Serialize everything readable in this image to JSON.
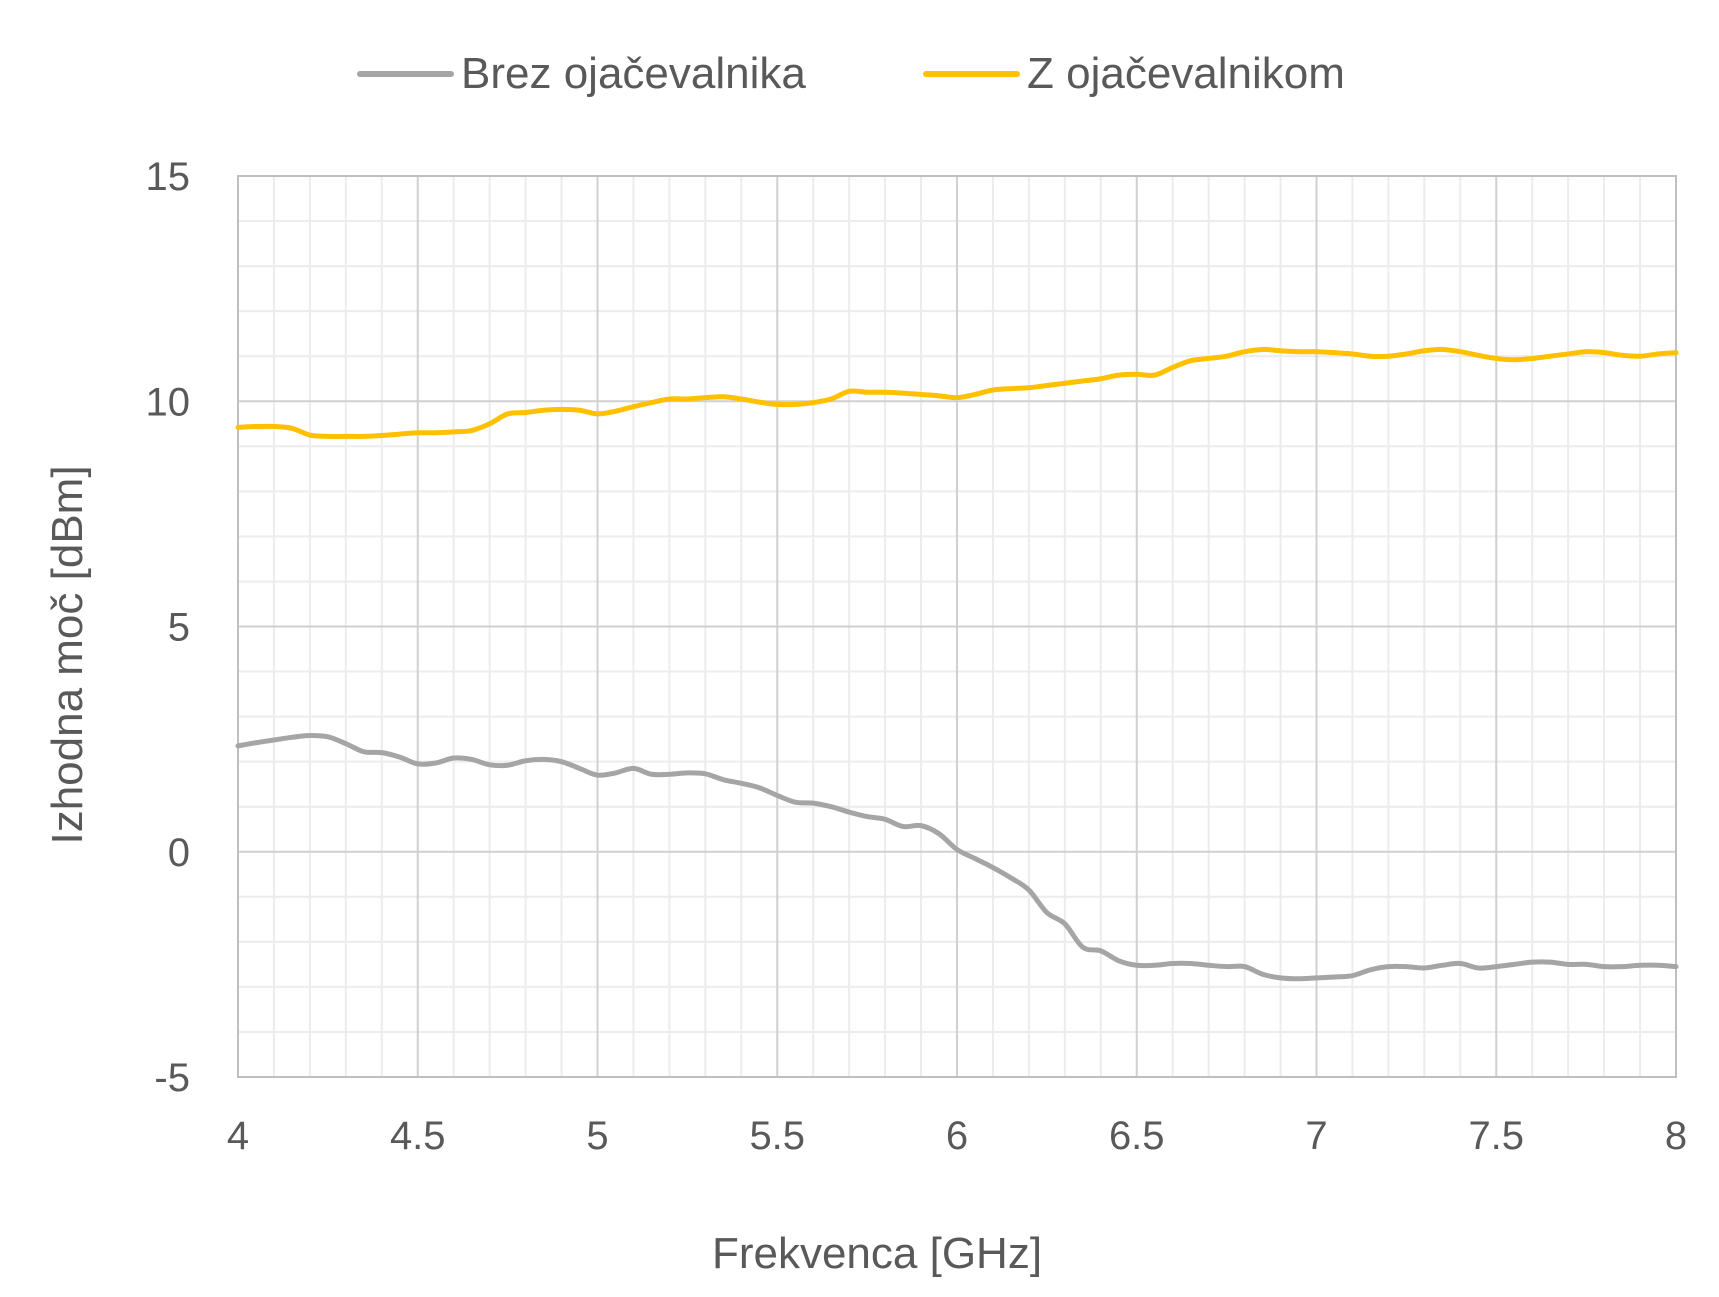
{
  "chart_data": {
    "type": "line",
    "title": "",
    "xlabel": "Frekvenca [GHz]",
    "ylabel": "Izhodna moč [dBm]",
    "xlim": [
      4,
      8
    ],
    "ylim": [
      -5,
      15
    ],
    "x_major_step": 0.5,
    "x_minor_step": 0.1,
    "y_major_step": 5,
    "y_minor_step": 1,
    "x_ticks": [
      "4",
      "4.5",
      "5",
      "5.5",
      "6",
      "6.5",
      "7",
      "7.5",
      "8"
    ],
    "y_ticks": [
      "-5",
      "0",
      "5",
      "10",
      "15"
    ],
    "grid": true,
    "legend_position": "top-center",
    "series": [
      {
        "name": "Brez ojačevalnika",
        "color": "#a5a5a5",
        "x": [
          4.0,
          4.05,
          4.1,
          4.15,
          4.2,
          4.25,
          4.3,
          4.35,
          4.4,
          4.45,
          4.5,
          4.55,
          4.6,
          4.65,
          4.7,
          4.75,
          4.8,
          4.85,
          4.9,
          4.95,
          5.0,
          5.05,
          5.1,
          5.15,
          5.2,
          5.25,
          5.3,
          5.35,
          5.4,
          5.45,
          5.5,
          5.55,
          5.6,
          5.65,
          5.7,
          5.75,
          5.8,
          5.85,
          5.9,
          5.95,
          6.0,
          6.05,
          6.1,
          6.15,
          6.2,
          6.25,
          6.3,
          6.35,
          6.4,
          6.45,
          6.5,
          6.55,
          6.6,
          6.65,
          6.7,
          6.75,
          6.8,
          6.85,
          6.9,
          6.95,
          7.0,
          7.05,
          7.1,
          7.15,
          7.2,
          7.25,
          7.3,
          7.35,
          7.4,
          7.45,
          7.5,
          7.55,
          7.6,
          7.65,
          7.7,
          7.75,
          7.8,
          7.85,
          7.9,
          7.95,
          8.0
        ],
        "values": [
          2.35,
          2.42,
          2.48,
          2.54,
          2.58,
          2.55,
          2.4,
          2.22,
          2.2,
          2.1,
          1.95,
          1.97,
          2.08,
          2.05,
          1.93,
          1.92,
          2.02,
          2.05,
          2.0,
          1.85,
          1.7,
          1.75,
          1.85,
          1.72,
          1.72,
          1.75,
          1.73,
          1.6,
          1.52,
          1.42,
          1.25,
          1.1,
          1.08,
          1.0,
          0.88,
          0.78,
          0.72,
          0.56,
          0.58,
          0.4,
          0.05,
          -0.15,
          -0.35,
          -0.58,
          -0.85,
          -1.35,
          -1.6,
          -2.12,
          -2.2,
          -2.42,
          -2.52,
          -2.52,
          -2.48,
          -2.48,
          -2.52,
          -2.55,
          -2.55,
          -2.72,
          -2.8,
          -2.82,
          -2.8,
          -2.78,
          -2.75,
          -2.62,
          -2.55,
          -2.55,
          -2.58,
          -2.52,
          -2.48,
          -2.58,
          -2.55,
          -2.5,
          -2.45,
          -2.45,
          -2.5,
          -2.5,
          -2.55,
          -2.55,
          -2.52,
          -2.52,
          -2.55
        ]
      },
      {
        "name": "Z ojačevalnikom",
        "color": "#ffc000",
        "x": [
          4.0,
          4.05,
          4.1,
          4.15,
          4.2,
          4.25,
          4.3,
          4.35,
          4.4,
          4.45,
          4.5,
          4.55,
          4.6,
          4.65,
          4.7,
          4.75,
          4.8,
          4.85,
          4.9,
          4.95,
          5.0,
          5.05,
          5.1,
          5.15,
          5.2,
          5.25,
          5.3,
          5.35,
          5.4,
          5.45,
          5.5,
          5.55,
          5.6,
          5.65,
          5.7,
          5.75,
          5.8,
          5.85,
          5.9,
          5.95,
          6.0,
          6.05,
          6.1,
          6.15,
          6.2,
          6.25,
          6.3,
          6.35,
          6.4,
          6.45,
          6.5,
          6.55,
          6.6,
          6.65,
          6.7,
          6.75,
          6.8,
          6.85,
          6.9,
          6.95,
          7.0,
          7.05,
          7.1,
          7.15,
          7.2,
          7.25,
          7.3,
          7.35,
          7.4,
          7.45,
          7.5,
          7.55,
          7.6,
          7.65,
          7.7,
          7.75,
          7.8,
          7.85,
          7.9,
          7.95,
          8.0
        ],
        "values": [
          9.42,
          9.44,
          9.44,
          9.4,
          9.25,
          9.22,
          9.22,
          9.22,
          9.24,
          9.27,
          9.3,
          9.3,
          9.32,
          9.35,
          9.5,
          9.72,
          9.75,
          9.8,
          9.82,
          9.8,
          9.72,
          9.78,
          9.88,
          9.97,
          10.05,
          10.05,
          10.08,
          10.1,
          10.05,
          9.98,
          9.93,
          9.93,
          9.97,
          10.05,
          10.22,
          10.2,
          10.2,
          10.18,
          10.15,
          10.12,
          10.08,
          10.15,
          10.25,
          10.28,
          10.3,
          10.35,
          10.4,
          10.45,
          10.5,
          10.58,
          10.6,
          10.58,
          10.75,
          10.9,
          10.95,
          11.0,
          11.1,
          11.15,
          11.12,
          11.1,
          11.1,
          11.08,
          11.05,
          11.0,
          11.0,
          11.05,
          11.12,
          11.15,
          11.1,
          11.02,
          10.95,
          10.92,
          10.95,
          11.0,
          11.05,
          11.1,
          11.08,
          11.02,
          11.0,
          11.05,
          11.08
        ]
      }
    ]
  }
}
